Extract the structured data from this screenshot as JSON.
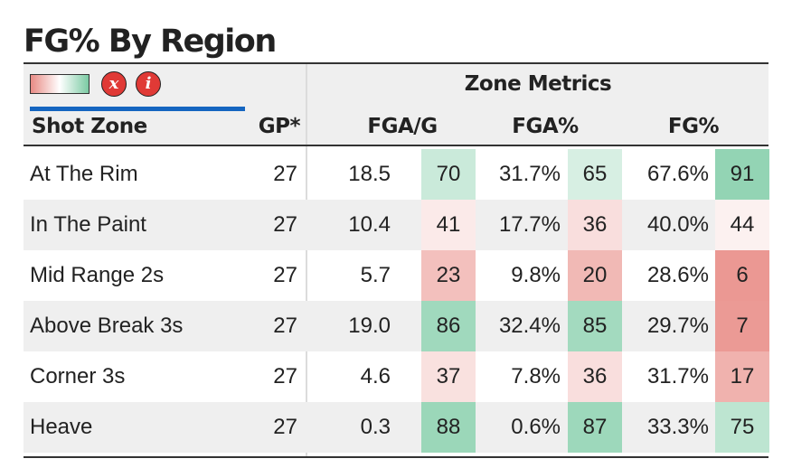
{
  "title": "FG% By Region",
  "controls": {
    "clear_label": "x",
    "info_label": "i"
  },
  "header": {
    "group_label": "Zone Metrics",
    "zone_label": "Shot Zone",
    "gp_label": "GP*",
    "fga_g_label": "FGA/G",
    "fga_pct_label": "FGA%",
    "fg_pct_label": "FG%"
  },
  "colors": {
    "low": "#e88a84",
    "mid": "#ffffff",
    "high": "#7bcaa3",
    "accent": "#1565c0",
    "button": "#e03a36"
  },
  "rows": [
    {
      "zone": "At The Rim",
      "gp": "27",
      "fga_g": "18.5",
      "fga_g_pct": "70",
      "fga_pct": "31.7%",
      "fga_pct_pct": "65",
      "fg_pct": "67.6%",
      "fg_pct_pct": "91"
    },
    {
      "zone": "In The Paint",
      "gp": "27",
      "fga_g": "10.4",
      "fga_g_pct": "41",
      "fga_pct": "17.7%",
      "fga_pct_pct": "36",
      "fg_pct": "40.0%",
      "fg_pct_pct": "44"
    },
    {
      "zone": "Mid Range 2s",
      "gp": "27",
      "fga_g": "5.7",
      "fga_g_pct": "23",
      "fga_pct": "9.8%",
      "fga_pct_pct": "20",
      "fg_pct": "28.6%",
      "fg_pct_pct": "6"
    },
    {
      "zone": "Above Break 3s",
      "gp": "27",
      "fga_g": "19.0",
      "fga_g_pct": "86",
      "fga_pct": "32.4%",
      "fga_pct_pct": "85",
      "fg_pct": "29.7%",
      "fg_pct_pct": "7"
    },
    {
      "zone": "Corner 3s",
      "gp": "27",
      "fga_g": "4.6",
      "fga_g_pct": "37",
      "fga_pct": "7.8%",
      "fga_pct_pct": "36",
      "fg_pct": "31.7%",
      "fg_pct_pct": "17"
    },
    {
      "zone": "Heave",
      "gp": "27",
      "fga_g": "0.3",
      "fga_g_pct": "88",
      "fga_pct": "0.6%",
      "fga_pct_pct": "87",
      "fg_pct": "33.3%",
      "fg_pct_pct": "75"
    }
  ]
}
